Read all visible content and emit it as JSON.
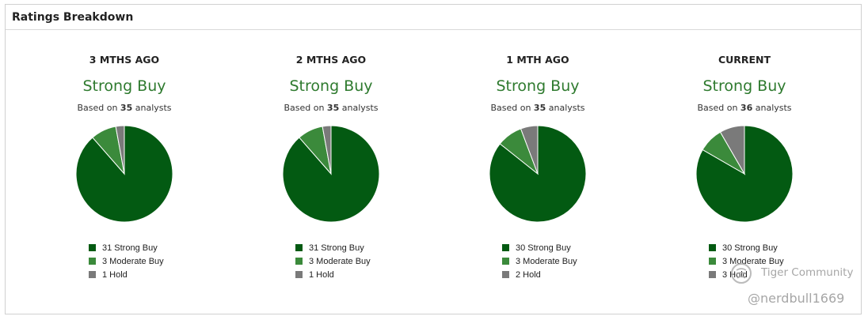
{
  "panel": {
    "title": "Ratings Breakdown"
  },
  "legend_colors": {
    "strong_buy": "#035a12",
    "moderate_buy": "#3b8a3b",
    "hold": "#7a7a7a"
  },
  "columns": [
    {
      "title": "3 MTHS AGO",
      "consensus": "Strong Buy",
      "basis_prefix": "Based on",
      "analysts": "35",
      "basis_suffix": "analysts",
      "legend": [
        "31 Strong Buy",
        "3 Moderate Buy",
        "1 Hold"
      ]
    },
    {
      "title": "2 MTHS AGO",
      "consensus": "Strong Buy",
      "basis_prefix": "Based on",
      "analysts": "35",
      "basis_suffix": "analysts",
      "legend": [
        "31 Strong Buy",
        "3 Moderate Buy",
        "1 Hold"
      ]
    },
    {
      "title": "1 MTH AGO",
      "consensus": "Strong Buy",
      "basis_prefix": "Based on",
      "analysts": "35",
      "basis_suffix": "analysts",
      "legend": [
        "30 Strong Buy",
        "3 Moderate Buy",
        "2 Hold"
      ]
    },
    {
      "title": "CURRENT",
      "consensus": "Strong Buy",
      "basis_prefix": "Based on",
      "analysts": "36",
      "basis_suffix": "analysts",
      "legend": [
        "30 Strong Buy",
        "3 Moderate Buy",
        "3 Hold"
      ]
    }
  ],
  "chart_data": [
    {
      "type": "pie",
      "title": "3 MTHS AGO",
      "categories": [
        "Strong Buy",
        "Moderate Buy",
        "Hold"
      ],
      "values": [
        31,
        3,
        1
      ],
      "legend": "bottom"
    },
    {
      "type": "pie",
      "title": "2 MTHS AGO",
      "categories": [
        "Strong Buy",
        "Moderate Buy",
        "Hold"
      ],
      "values": [
        31,
        3,
        1
      ],
      "legend": "bottom"
    },
    {
      "type": "pie",
      "title": "1 MTH AGO",
      "categories": [
        "Strong Buy",
        "Moderate Buy",
        "Hold"
      ],
      "values": [
        30,
        3,
        2
      ],
      "legend": "bottom"
    },
    {
      "type": "pie",
      "title": "CURRENT",
      "categories": [
        "Strong Buy",
        "Moderate Buy",
        "Hold"
      ],
      "values": [
        30,
        3,
        3
      ],
      "legend": "bottom"
    }
  ],
  "watermark": {
    "brand": "Tiger Community",
    "handle": "@nerdbull1669"
  }
}
